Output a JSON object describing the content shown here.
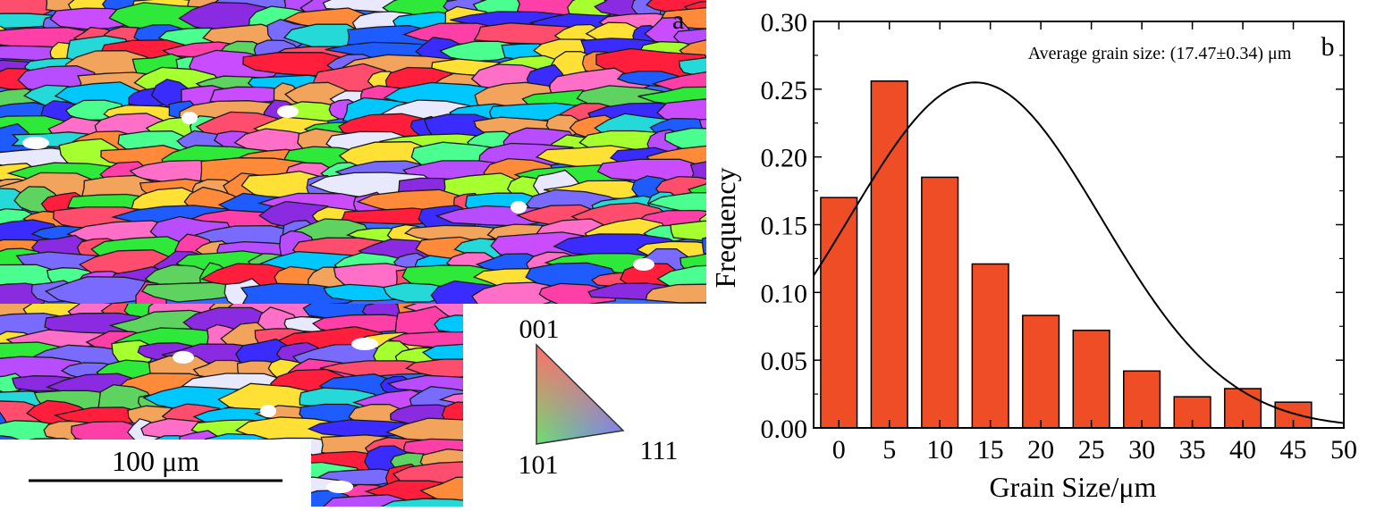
{
  "panel_a": {
    "panel_label": "a",
    "scale_bar_label": "100 μm",
    "ipf_key": {
      "label_top": "001",
      "label_bottom_left": "101",
      "label_bottom_right": "111"
    },
    "grain_palette": [
      "#ff1f3d",
      "#1e5cff",
      "#2ee83a",
      "#8a2be2",
      "#ffe135",
      "#00c8ff",
      "#b84dff",
      "#ff6ec7",
      "#4aff8f",
      "#3a2cff",
      "#f2a35c",
      "#a6ff2e",
      "#ff3fa8",
      "#26d9d9",
      "#7a6bff",
      "#c94cff",
      "#ff8a3a",
      "#e8e8ff",
      "#5fd35f",
      "#ff4d6d"
    ]
  },
  "chart_data": {
    "type": "bar",
    "panel_label": "b",
    "annotation": "Average grain size: (17.47±0.34) μm",
    "xlabel": "Grain Size/μm",
    "ylabel": "Frequency",
    "xlim": [
      -2.5,
      50
    ],
    "ylim": [
      0,
      0.3
    ],
    "xticks": [
      "0",
      "5",
      "10",
      "15",
      "20",
      "25",
      "30",
      "35",
      "40",
      "45",
      "50"
    ],
    "yticks": [
      "0.00",
      "0.05",
      "0.10",
      "0.15",
      "0.20",
      "0.25",
      "0.30"
    ],
    "bar_width": 3.6,
    "x": [
      0,
      5,
      10,
      15,
      20,
      25,
      30,
      35,
      40,
      45
    ],
    "values": [
      0.17,
      0.256,
      0.185,
      0.121,
      0.083,
      0.072,
      0.042,
      0.023,
      0.029,
      0.019
    ],
    "fit_curve": {
      "type": "gaussian",
      "peak_x": 13.5,
      "peak_y": 0.255,
      "sigma": 12.5
    },
    "bar_color": "#ee4d25",
    "curve_color": "#000000"
  }
}
